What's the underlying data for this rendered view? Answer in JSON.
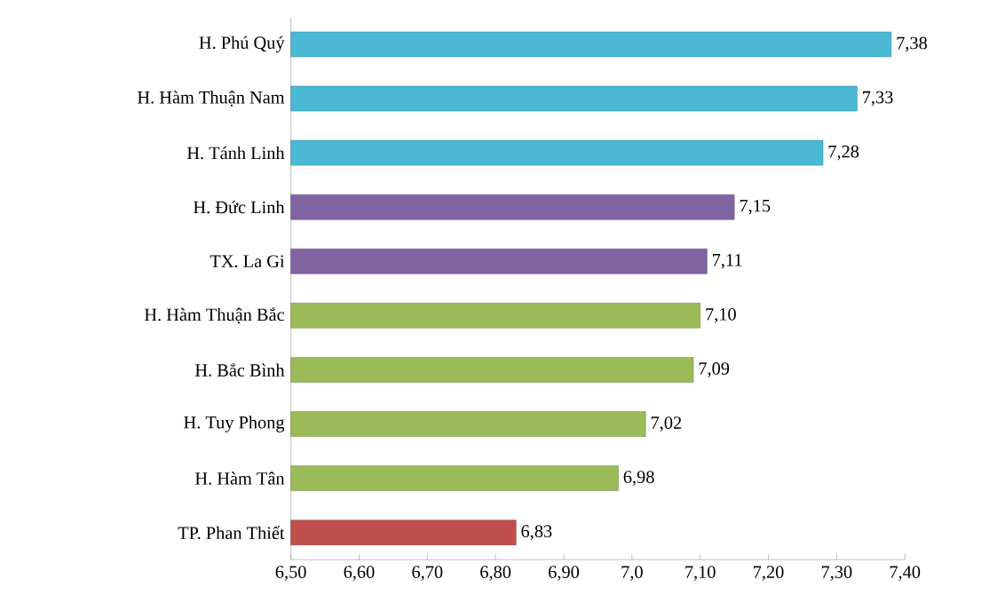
{
  "chart_data": {
    "type": "bar",
    "orientation": "horizontal",
    "categories": [
      "H. Phú Quý",
      "H. Hàm Thuận Nam",
      "H. Tánh Linh",
      "H. Đức Linh",
      "TX. La Gi",
      "H. Hàm Thuận Bắc",
      "H. Bắc Bình",
      "H. Tuy Phong",
      "H. Hàm Tân",
      "TP. Phan Thiết"
    ],
    "values": [
      7.38,
      7.33,
      7.28,
      7.15,
      7.11,
      7.1,
      7.09,
      7.02,
      6.98,
      6.83
    ],
    "value_labels": [
      "7,38",
      "7,33",
      "7,28",
      "7,15",
      "7,11",
      "7,10",
      "7,09",
      "7,02",
      "6,98",
      "6,83"
    ],
    "colors": [
      "#4bb8d4",
      "#4bb8d4",
      "#4bb8d4",
      "#8064a2",
      "#8064a2",
      "#9bbb59",
      "#9bbb59",
      "#9bbb59",
      "#9bbb59",
      "#c0504d"
    ],
    "xlim": [
      6.5,
      7.4
    ],
    "xticks": [
      {
        "value": 6.5,
        "label": "6,50"
      },
      {
        "value": 6.6,
        "label": "6,60"
      },
      {
        "value": 6.7,
        "label": "6,70"
      },
      {
        "value": 6.8,
        "label": "6,80"
      },
      {
        "value": 6.9,
        "label": "6,90"
      },
      {
        "value": 7.0,
        "label": "7,0"
      },
      {
        "value": 7.1,
        "label": "7,10"
      },
      {
        "value": 7.2,
        "label": "7,20"
      },
      {
        "value": 7.3,
        "label": "7,30"
      },
      {
        "value": 7.4,
        "label": "7,40"
      }
    ],
    "grid": false
  }
}
